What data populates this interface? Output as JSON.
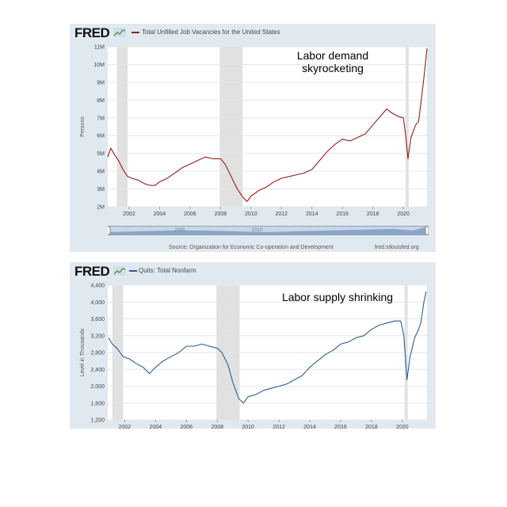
{
  "colors": {
    "panel_bg": "#e1e9f0",
    "plot_bg": "#ffffff",
    "recession": "#e1e1e1",
    "vacancies_line": "#9a1b1b",
    "quits_line": "#2a5d96"
  },
  "charts": {
    "top": {
      "logo": "FRED",
      "legend": "Total Unfilled Job Vacancies for the United States",
      "annotation_line1": "Labor demand",
      "annotation_line2": "skyrocketing",
      "source": "Source: Organization for Economic Co-operation and Development",
      "site": "fred.stlouisfed.org",
      "navigator_labels": [
        "2000",
        "2010"
      ]
    },
    "bottom": {
      "logo": "FRED",
      "legend": "Quits: Total Nonfarm",
      "annotation": "Labor supply shrinking"
    }
  },
  "chart_data": [
    {
      "type": "line",
      "xlim": [
        2000.6,
        2021.55
      ],
      "ylim": [
        2,
        11
      ],
      "ylabel": "Persons",
      "yticks": [
        2,
        3,
        4,
        5,
        6,
        7,
        8,
        9,
        10,
        11
      ],
      "ytick_labels": [
        "2M",
        "3M",
        "4M",
        "5M",
        "6M",
        "7M",
        "8M",
        "9M",
        "10M",
        "11M"
      ],
      "xticks": [
        2002,
        2004,
        2006,
        2008,
        2010,
        2012,
        2014,
        2016,
        2018,
        2020
      ],
      "recessions": [
        [
          2001.2,
          2001.9
        ],
        [
          2007.95,
          2009.45
        ],
        [
          2020.15,
          2020.35
        ]
      ],
      "series": [
        {
          "name": "Total Unfilled Job Vacancies for the United States",
          "points": [
            [
              2000.6,
              4.8
            ],
            [
              2000.8,
              5.3
            ],
            [
              2001.0,
              5.0
            ],
            [
              2001.3,
              4.6
            ],
            [
              2001.6,
              4.1
            ],
            [
              2001.9,
              3.7
            ],
            [
              2002.2,
              3.6
            ],
            [
              2002.6,
              3.5
            ],
            [
              2003.0,
              3.3
            ],
            [
              2003.4,
              3.2
            ],
            [
              2003.7,
              3.2
            ],
            [
              2004.0,
              3.4
            ],
            [
              2004.5,
              3.6
            ],
            [
              2005.0,
              3.9
            ],
            [
              2005.5,
              4.2
            ],
            [
              2006.0,
              4.4
            ],
            [
              2006.5,
              4.6
            ],
            [
              2007.0,
              4.8
            ],
            [
              2007.5,
              4.7
            ],
            [
              2008.0,
              4.7
            ],
            [
              2008.3,
              4.4
            ],
            [
              2008.7,
              3.7
            ],
            [
              2009.1,
              3.0
            ],
            [
              2009.5,
              2.5
            ],
            [
              2009.75,
              2.3
            ],
            [
              2010.0,
              2.6
            ],
            [
              2010.5,
              2.9
            ],
            [
              2011.0,
              3.1
            ],
            [
              2011.5,
              3.4
            ],
            [
              2012.0,
              3.6
            ],
            [
              2012.5,
              3.7
            ],
            [
              2013.0,
              3.8
            ],
            [
              2013.5,
              3.9
            ],
            [
              2014.0,
              4.1
            ],
            [
              2014.5,
              4.6
            ],
            [
              2015.0,
              5.1
            ],
            [
              2015.5,
              5.5
            ],
            [
              2016.0,
              5.8
            ],
            [
              2016.5,
              5.7
            ],
            [
              2017.0,
              5.9
            ],
            [
              2017.5,
              6.1
            ],
            [
              2018.0,
              6.6
            ],
            [
              2018.5,
              7.1
            ],
            [
              2018.9,
              7.5
            ],
            [
              2019.2,
              7.3
            ],
            [
              2019.6,
              7.1
            ],
            [
              2020.0,
              7.0
            ],
            [
              2020.15,
              6.0
            ],
            [
              2020.3,
              4.7
            ],
            [
              2020.5,
              5.9
            ],
            [
              2020.8,
              6.6
            ],
            [
              2021.0,
              6.8
            ],
            [
              2021.2,
              8.2
            ],
            [
              2021.35,
              9.3
            ],
            [
              2021.55,
              10.9
            ]
          ]
        }
      ]
    },
    {
      "type": "line",
      "xlim": [
        2000.9,
        2021.6
      ],
      "ylim": [
        1200,
        4400
      ],
      "ylabel": "Level in Thousands",
      "yticks": [
        1200,
        1600,
        2000,
        2400,
        2800,
        3200,
        3600,
        4000,
        4400
      ],
      "ytick_labels": [
        "1,200",
        "1,600",
        "2,000",
        "2,400",
        "2,800",
        "3,200",
        "3,600",
        "4,000",
        "4,400"
      ],
      "xticks": [
        2002,
        2004,
        2006,
        2008,
        2010,
        2012,
        2014,
        2016,
        2018,
        2020
      ],
      "recessions": [
        [
          2001.2,
          2001.9
        ],
        [
          2007.95,
          2009.45
        ],
        [
          2020.15,
          2020.35
        ]
      ],
      "series": [
        {
          "name": "Quits: Total Nonfarm",
          "points": [
            [
              2000.95,
              3150
            ],
            [
              2001.2,
              3000
            ],
            [
              2001.5,
              2900
            ],
            [
              2001.9,
              2700
            ],
            [
              2002.3,
              2650
            ],
            [
              2002.7,
              2550
            ],
            [
              2003.2,
              2450
            ],
            [
              2003.6,
              2300
            ],
            [
              2004.0,
              2450
            ],
            [
              2004.5,
              2600
            ],
            [
              2005.0,
              2700
            ],
            [
              2005.5,
              2800
            ],
            [
              2006.0,
              2950
            ],
            [
              2006.5,
              2950
            ],
            [
              2007.0,
              3000
            ],
            [
              2007.5,
              2950
            ],
            [
              2008.0,
              2900
            ],
            [
              2008.3,
              2800
            ],
            [
              2008.7,
              2500
            ],
            [
              2009.0,
              2100
            ],
            [
              2009.4,
              1700
            ],
            [
              2009.7,
              1600
            ],
            [
              2010.0,
              1750
            ],
            [
              2010.5,
              1800
            ],
            [
              2011.0,
              1900
            ],
            [
              2011.5,
              1950
            ],
            [
              2012.0,
              2000
            ],
            [
              2012.5,
              2050
            ],
            [
              2013.0,
              2150
            ],
            [
              2013.5,
              2250
            ],
            [
              2014.0,
              2450
            ],
            [
              2014.5,
              2600
            ],
            [
              2015.0,
              2750
            ],
            [
              2015.5,
              2850
            ],
            [
              2016.0,
              3000
            ],
            [
              2016.5,
              3050
            ],
            [
              2017.0,
              3150
            ],
            [
              2017.5,
              3200
            ],
            [
              2018.0,
              3350
            ],
            [
              2018.5,
              3450
            ],
            [
              2019.0,
              3500
            ],
            [
              2019.5,
              3550
            ],
            [
              2019.9,
              3550
            ],
            [
              2020.1,
              3200
            ],
            [
              2020.3,
              2150
            ],
            [
              2020.5,
              2700
            ],
            [
              2020.8,
              3150
            ],
            [
              2021.0,
              3300
            ],
            [
              2021.2,
              3500
            ],
            [
              2021.4,
              4000
            ],
            [
              2021.55,
              4250
            ]
          ]
        }
      ]
    }
  ]
}
